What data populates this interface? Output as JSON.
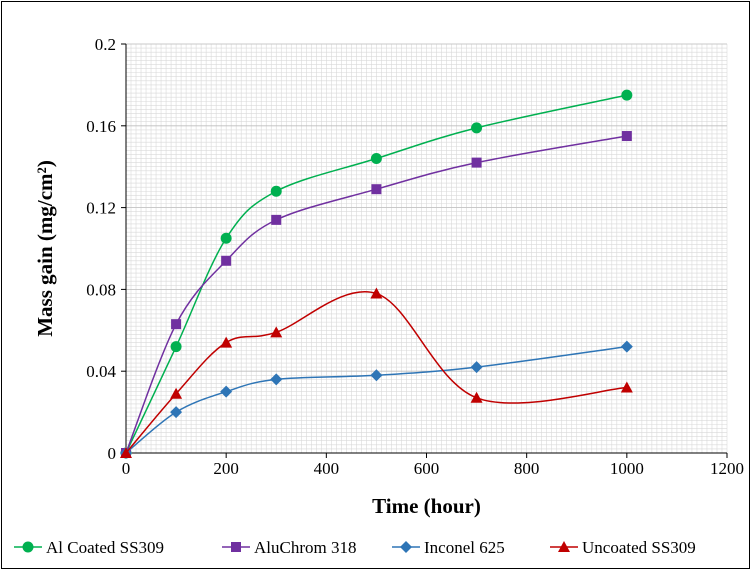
{
  "chart_data": {
    "type": "line",
    "title": "",
    "xlabel": "Time (hour)",
    "ylabel": "Mass gain (mg/cm²)",
    "xlim": [
      0,
      1200
    ],
    "ylim": [
      0,
      0.2
    ],
    "x_ticks": [
      0,
      200,
      400,
      600,
      800,
      1000,
      1200
    ],
    "y_ticks": [
      0,
      0.04,
      0.08,
      0.12,
      0.16,
      0.2
    ],
    "x_tick_labels": [
      "0",
      "200",
      "400",
      "600",
      "800",
      "1000",
      "1200"
    ],
    "y_tick_labels": [
      "0",
      "0.04",
      "0.08",
      "0.12",
      "0.16",
      "0.2"
    ],
    "grid": true,
    "legend_position": "bottom",
    "series": [
      {
        "name": "Al Coated SS309",
        "color": "#00B050",
        "marker": "circle",
        "x": [
          0,
          100,
          200,
          300,
          500,
          700,
          1000
        ],
        "y": [
          0,
          0.052,
          0.105,
          0.128,
          0.144,
          0.159,
          0.175
        ]
      },
      {
        "name": "AluChrom 318",
        "color": "#7030A0",
        "marker": "square",
        "x": [
          0,
          100,
          200,
          300,
          500,
          700,
          1000
        ],
        "y": [
          0,
          0.063,
          0.094,
          0.114,
          0.129,
          0.142,
          0.155
        ]
      },
      {
        "name": "Inconel 625",
        "color": "#2E75B6",
        "marker": "diamond",
        "x": [
          0,
          100,
          200,
          300,
          500,
          700,
          1000
        ],
        "y": [
          0,
          0.02,
          0.03,
          0.036,
          0.038,
          0.042,
          0.052
        ]
      },
      {
        "name": "Uncoated SS309",
        "color": "#C00000",
        "marker": "triangle",
        "x": [
          0,
          100,
          200,
          300,
          500,
          700,
          1000
        ],
        "y": [
          0,
          0.029,
          0.054,
          0.059,
          0.078,
          0.027,
          0.032
        ]
      }
    ]
  }
}
